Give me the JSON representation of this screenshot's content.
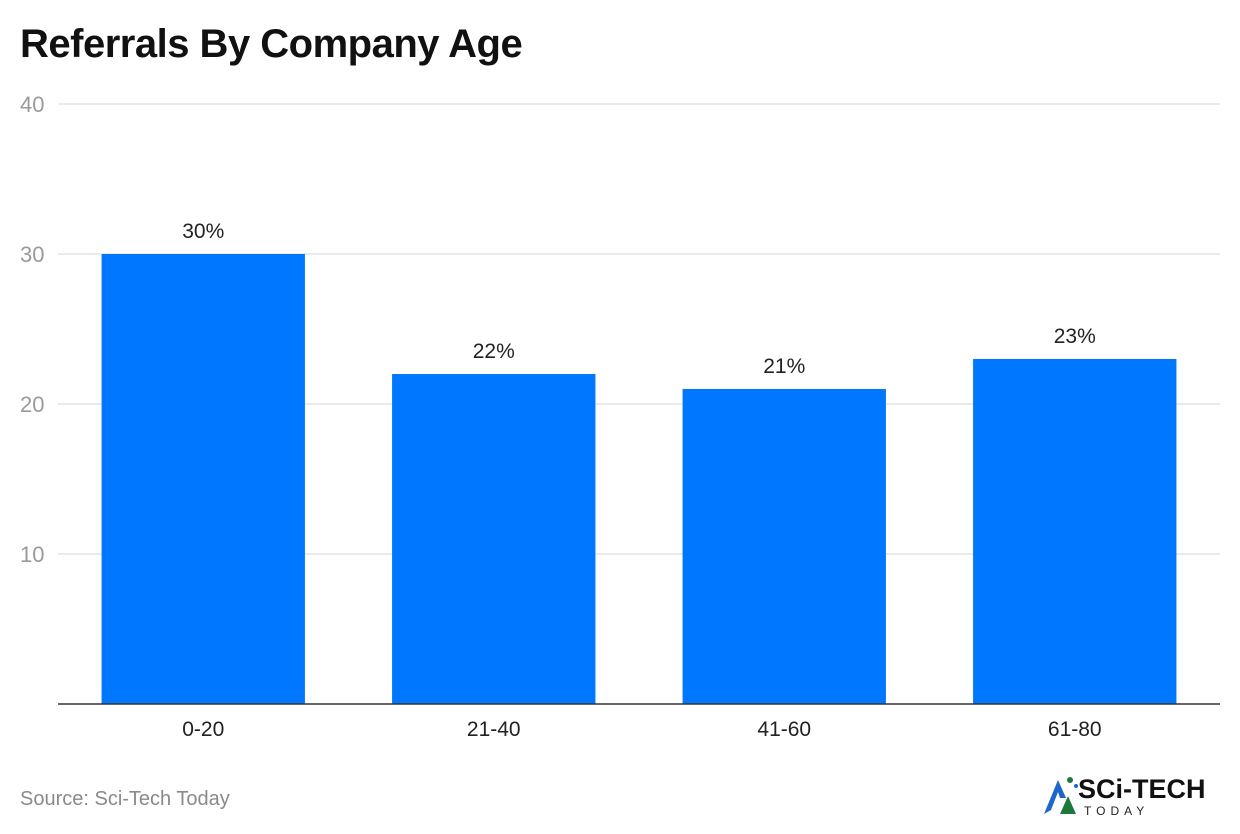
{
  "chart_data": {
    "type": "bar",
    "title": "Referrals By Company Age",
    "categories": [
      "0-20",
      "21-40",
      "41-60",
      "61-80"
    ],
    "values": [
      30,
      22,
      21,
      23
    ],
    "data_labels": [
      "30%",
      "22%",
      "21%",
      "23%"
    ],
    "ylim": [
      0,
      40
    ],
    "yticks": [
      10,
      20,
      30,
      40
    ],
    "grid": true,
    "bar_color": "#0077ff"
  },
  "footer": {
    "source": "Source: Sci-Tech Today"
  },
  "logo": {
    "main": "SCi-TECH",
    "sub": "TODAY",
    "accent_color": "#1b7a3a",
    "mark_color": "#1e66c9"
  }
}
